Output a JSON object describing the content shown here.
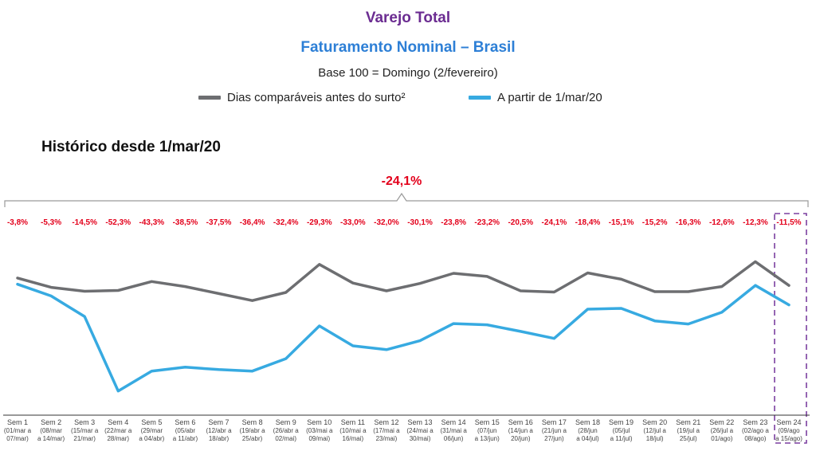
{
  "header": {
    "title": "Varejo Total",
    "subtitle": "Faturamento Nominal – Brasil",
    "base": "Base 100 = Domingo (2/fevereiro)",
    "section_title": "Histórico desde 1/mar/20"
  },
  "colors": {
    "title": "#6b2c91",
    "subtitle": "#2d7fd6",
    "series_before": "#6d6e71",
    "series_after": "#37aae1",
    "pct_labels": "#e3001b",
    "highlight_box": "#7b3fa0"
  },
  "chart_data": {
    "type": "line",
    "overall_change": "-24,1%",
    "categories": [
      {
        "week": "Sem 1",
        "range1": "(01/mar a",
        "range2": "07/mar)"
      },
      {
        "week": "Sem 2",
        "range1": "(08/mar",
        "range2": "a 14/mar)"
      },
      {
        "week": "Sem 3",
        "range1": "(15/mar a",
        "range2": "21/mar)"
      },
      {
        "week": "Sem 4",
        "range1": "(22/mar a",
        "range2": "28/mar)"
      },
      {
        "week": "Sem 5",
        "range1": "(29/mar",
        "range2": "a 04/abr)"
      },
      {
        "week": "Sem 6",
        "range1": "(05/abr",
        "range2": "a 11/abr)"
      },
      {
        "week": "Sem 7",
        "range1": "(12/abr a",
        "range2": "18/abr)"
      },
      {
        "week": "Sem 8",
        "range1": "(19/abr a",
        "range2": "25/abr)"
      },
      {
        "week": "Sem 9",
        "range1": "(26/abr a",
        "range2": "02/mai)"
      },
      {
        "week": "Sem 10",
        "range1": "(03/mai a",
        "range2": "09/mai)"
      },
      {
        "week": "Sem 11",
        "range1": "(10/mai a",
        "range2": "16/mai)"
      },
      {
        "week": "Sem 12",
        "range1": "(17/mai a",
        "range2": "23/mai)"
      },
      {
        "week": "Sem 13",
        "range1": "(24/mai a",
        "range2": "30/mai)"
      },
      {
        "week": "Sem 14",
        "range1": "(31/mai a",
        "range2": "06/jun)"
      },
      {
        "week": "Sem 15",
        "range1": "(07/jun",
        "range2": "a 13/jun)"
      },
      {
        "week": "Sem 16",
        "range1": "(14/jun a",
        "range2": "20/jun)"
      },
      {
        "week": "Sem 17",
        "range1": "(21/jun a",
        "range2": "27/jun)"
      },
      {
        "week": "Sem 18",
        "range1": "(28/jun",
        "range2": "a 04/jul)"
      },
      {
        "week": "Sem 19",
        "range1": "(05/jul",
        "range2": "a 11/jul)"
      },
      {
        "week": "Sem 20",
        "range1": "(12/jul a",
        "range2": "18/jul)"
      },
      {
        "week": "Sem 21",
        "range1": "(19/jul a",
        "range2": "25/jul)"
      },
      {
        "week": "Sem 22",
        "range1": "(26/jul a",
        "range2": "01/ago)"
      },
      {
        "week": "Sem 23",
        "range1": "(02/ago a",
        "range2": "08/ago)"
      },
      {
        "week": "Sem 24",
        "range1": "(09/ago",
        "range2": "a 15/ago)"
      }
    ],
    "pct_changes": [
      "-3,8%",
      "-5,3%",
      "-14,5%",
      "-52,3%",
      "-43,3%",
      "-38,5%",
      "-37,5%",
      "-36,4%",
      "-32,4%",
      "-29,3%",
      "-33,0%",
      "-32,0%",
      "-30,1%",
      "-23,8%",
      "-23,2%",
      "-20,5%",
      "-24,1%",
      "-18,4%",
      "-15,1%",
      "-15,2%",
      "-16,3%",
      "-12,6%",
      "-12,3%",
      "-11,5%"
    ],
    "highlight_index": 23,
    "series": [
      {
        "name": "Dias comparáveis antes do surto²",
        "values": [
          100.0,
          97.6,
          96.6,
          96.8,
          99.1,
          97.8,
          96.0,
          94.2,
          96.3,
          103.5,
          98.7,
          96.7,
          98.6,
          101.2,
          100.4,
          96.7,
          96.4,
          101.3,
          99.7,
          96.5,
          96.5,
          97.8,
          104.2,
          98.1
        ]
      },
      {
        "name": "A partir de 1/mar/20",
        "values": [
          98.4,
          95.4,
          90.1,
          71.0,
          76.1,
          77.1,
          76.5,
          76.1,
          79.3,
          87.7,
          82.6,
          81.6,
          83.9,
          88.3,
          88.0,
          86.3,
          84.5,
          92.0,
          92.2,
          89.0,
          88.2,
          91.2,
          98.1,
          93.1
        ]
      }
    ],
    "ylim": [
      65,
      110
    ]
  }
}
